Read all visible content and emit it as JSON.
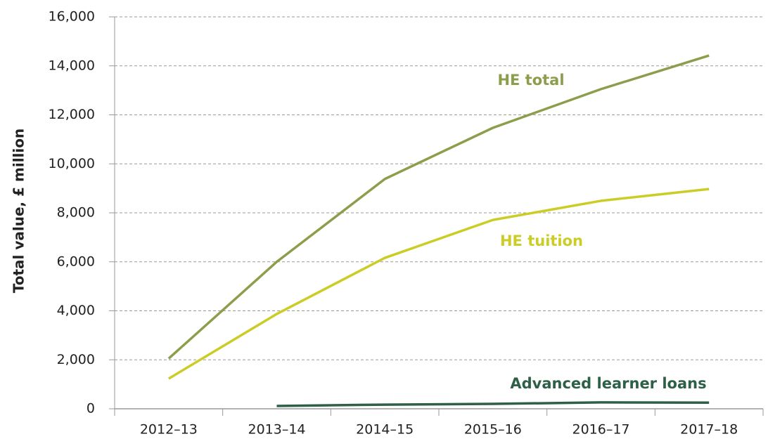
{
  "chart_data": {
    "type": "line",
    "y_label": "Total value, £ million",
    "categories": [
      "2012–13",
      "2013–14",
      "2014–15",
      "2015–16",
      "2016–17",
      "2017–18"
    ],
    "series": [
      {
        "name": "HE total",
        "color": "#8c9e4b",
        "values": [
          2050,
          6000,
          9380,
          11470,
          13050,
          14420
        ]
      },
      {
        "name": "HE tuition",
        "color": "#cbcd26",
        "values": [
          1230,
          3870,
          6160,
          7710,
          8490,
          8970
        ]
      },
      {
        "name": "Advanced learner loans",
        "color": "#2e5f47",
        "values": [
          null,
          115,
          170,
          200,
          260,
          250
        ]
      }
    ],
    "ylim": [
      0,
      16000
    ],
    "yticks": [
      0,
      {
        "value": 2000,
        "label": "2,000"
      },
      {
        "value": 4000,
        "label": "4,000"
      },
      {
        "value": 6000,
        "label": "6,000"
      },
      {
        "value": 8000,
        "label": "8,000"
      },
      {
        "value": 10000,
        "label": "10,000"
      },
      {
        "value": 12000,
        "label": "12,000"
      },
      {
        "value": 14000,
        "label": "14,000"
      },
      {
        "value": 16000,
        "label": "16,000"
      }
    ],
    "grid": true
  }
}
